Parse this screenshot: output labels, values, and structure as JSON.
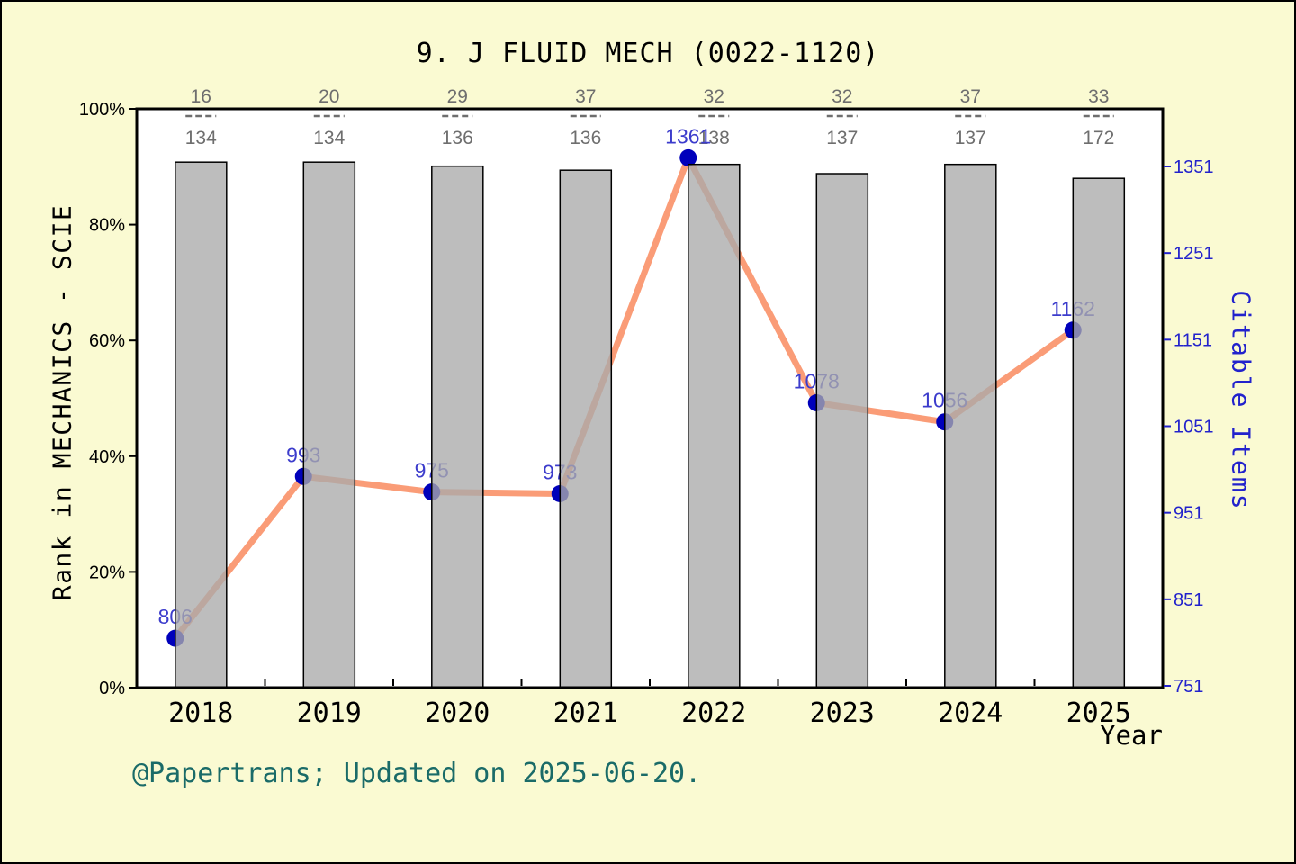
{
  "page": {
    "title": "9. J FLUID MECH (0022-1120)",
    "footer": "@Papertrans; Updated on 2025-06-20."
  },
  "chart_data": {
    "type": "bar",
    "subtype": "dual-axis bar + line",
    "title": "9. J FLUID MECH (0022-1120)",
    "categories": [
      "2018",
      "2019",
      "2020",
      "2021",
      "2022",
      "2023",
      "2024",
      "2025"
    ],
    "rank_fractions": [
      {
        "rank": 16,
        "total": 134
      },
      {
        "rank": 20,
        "total": 134
      },
      {
        "rank": 29,
        "total": 136
      },
      {
        "rank": 37,
        "total": 136
      },
      {
        "rank": 32,
        "total": 138
      },
      {
        "rank": 32,
        "total": 137
      },
      {
        "rank": 37,
        "total": 137
      },
      {
        "rank": 33,
        "total": 172
      }
    ],
    "series": [
      {
        "name": "Rank in MECHANICS - SCIE",
        "type": "bar",
        "axis": "left",
        "heights_pct": [
          90.8,
          90.8,
          90.1,
          89.4,
          90.4,
          88.8,
          90.4,
          88.0
        ]
      },
      {
        "name": "Citable Items",
        "type": "line",
        "axis": "right",
        "values": [
          806,
          993,
          975,
          973,
          1361,
          1078,
          1056,
          1162
        ],
        "point_labels": [
          "806",
          "993",
          "975",
          "973",
          "1361",
          "1078",
          "1056",
          "1162"
        ]
      }
    ],
    "left_axis": {
      "label": "Rank in MECHANICS - SCIE",
      "tick_labels": [
        "0%",
        "20%",
        "40%",
        "60%",
        "80%",
        "100%"
      ],
      "tick_values": [
        0,
        20,
        40,
        60,
        80,
        100
      ],
      "range": [
        0,
        100
      ]
    },
    "right_axis": {
      "label": "Citable Items",
      "tick_values": [
        751,
        851,
        951,
        1051,
        1151,
        1251,
        1351
      ],
      "range": [
        749,
        1417
      ]
    },
    "x_axis": {
      "label": "Year"
    },
    "legend": "none",
    "grid": "off",
    "colors": {
      "background": "#FAFAD2",
      "plot_background": "#FFFFFF",
      "bar_fill": "#AAAAAA",
      "bar_border": "#000000",
      "bar_opacity": 0.78,
      "line": "#FA9C77",
      "marker": "#0000BB",
      "point_label": "#3C3CCC",
      "right_axis_text": "#2222CC",
      "left_axis_text": "#000000",
      "fraction_text": "#6E6E6E",
      "footer_text": "#1A6B68",
      "frame": "#000000"
    }
  }
}
